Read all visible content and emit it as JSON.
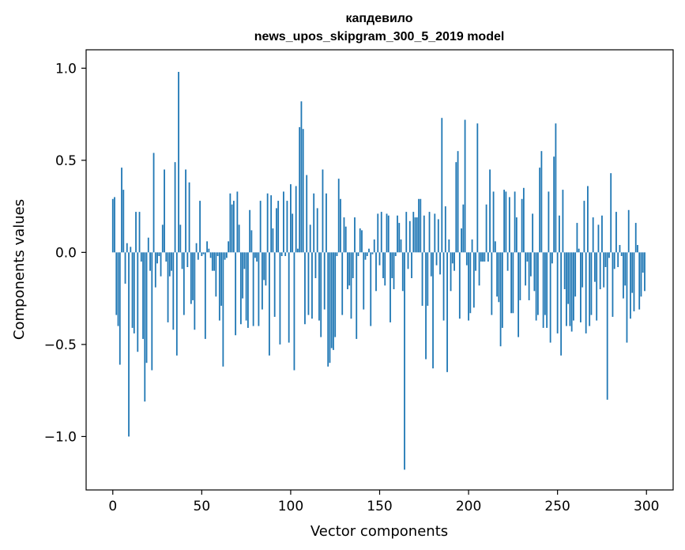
{
  "chart_data": {
    "type": "bar",
    "title_line1": "капдевило",
    "title_line2": "news_upos_skipgram_300_5_2019 model",
    "xlabel": "Vector components",
    "ylabel": "Components values",
    "xlim": [
      -15,
      315
    ],
    "ylim": [
      -1.29,
      1.1
    ],
    "xticks": [
      0,
      50,
      100,
      150,
      200,
      250,
      300
    ],
    "xtick_labels": [
      "0",
      "50",
      "100",
      "150",
      "200",
      "250",
      "300"
    ],
    "yticks": [
      -1.0,
      -0.5,
      0.0,
      0.5,
      1.0
    ],
    "ytick_labels": [
      "−1.0",
      "−0.5",
      "0.0",
      "0.5",
      "1.0"
    ],
    "bar_color": "#1f77b4",
    "values": [
      0.29,
      0.3,
      -0.34,
      -0.4,
      -0.61,
      0.46,
      0.34,
      -0.17,
      0.05,
      -1.0,
      0.03,
      -0.41,
      -0.44,
      0.22,
      -0.54,
      0.22,
      -0.05,
      -0.47,
      -0.81,
      -0.6,
      0.08,
      -0.1,
      -0.64,
      0.54,
      -0.19,
      -0.06,
      -0.02,
      -0.13,
      0.15,
      0.45,
      -0.05,
      -0.38,
      -0.13,
      -0.1,
      -0.42,
      0.49,
      -0.56,
      0.98,
      0.15,
      -0.09,
      -0.34,
      0.45,
      -0.08,
      0.38,
      -0.28,
      -0.26,
      -0.42,
      0.05,
      -0.04,
      0.28,
      -0.02,
      -0.01,
      -0.47,
      0.06,
      0.02,
      -0.03,
      -0.1,
      -0.1,
      -0.24,
      -0.02,
      -0.37,
      -0.29,
      -0.62,
      -0.04,
      -0.03,
      0.06,
      0.32,
      0.26,
      0.28,
      -0.45,
      0.33,
      0.15,
      -0.39,
      -0.25,
      -0.09,
      -0.37,
      -0.41,
      0.23,
      0.12,
      -0.4,
      -0.03,
      -0.05,
      -0.4,
      0.28,
      -0.31,
      -0.15,
      -0.18,
      0.32,
      -0.56,
      0.31,
      0.13,
      -0.35,
      0.24,
      0.28,
      -0.5,
      -0.02,
      0.33,
      -0.02,
      0.28,
      -0.49,
      0.37,
      0.21,
      -0.64,
      0.36,
      0.02,
      0.68,
      0.82,
      0.67,
      -0.39,
      0.42,
      -0.34,
      0.15,
      -0.36,
      0.32,
      -0.14,
      0.24,
      -0.37,
      -0.46,
      0.45,
      -0.31,
      0.32,
      -0.62,
      -0.6,
      -0.52,
      -0.53,
      -0.46,
      -0.02,
      0.4,
      0.29,
      -0.34,
      0.19,
      0.14,
      -0.2,
      -0.18,
      -0.36,
      -0.14,
      0.19,
      -0.47,
      -0.02,
      0.13,
      0.12,
      -0.31,
      -0.04,
      -0.02,
      0.02,
      -0.4,
      -0.01,
      0.07,
      -0.21,
      0.21,
      -0.07,
      0.22,
      -0.14,
      -0.18,
      0.21,
      0.2,
      -0.38,
      -0.14,
      -0.2,
      -0.02,
      0.2,
      0.16,
      0.07,
      -0.21,
      -1.18,
      0.22,
      -0.09,
      0.17,
      -0.14,
      0.22,
      0.19,
      0.19,
      0.29,
      0.29,
      -0.29,
      0.2,
      -0.58,
      -0.29,
      0.22,
      -0.13,
      -0.63,
      0.21,
      -0.07,
      0.18,
      -0.12,
      0.73,
      -0.37,
      0.25,
      -0.65,
      0.07,
      -0.21,
      -0.06,
      -0.1,
      0.49,
      0.55,
      -0.36,
      0.13,
      0.26,
      0.72,
      -0.07,
      -0.37,
      -0.33,
      0.07,
      -0.3,
      -0.1,
      0.7,
      -0.18,
      -0.05,
      -0.05,
      -0.05,
      0.26,
      -0.05,
      0.45,
      -0.34,
      0.33,
      0.06,
      -0.24,
      -0.27,
      -0.51,
      -0.41,
      0.34,
      0.33,
      -0.1,
      0.3,
      -0.33,
      -0.33,
      0.33,
      0.19,
      -0.46,
      -0.26,
      0.29,
      0.35,
      -0.18,
      -0.05,
      -0.26,
      -0.13,
      0.21,
      -0.21,
      -0.37,
      -0.34,
      0.46,
      0.55,
      -0.41,
      -0.34,
      -0.41,
      0.33,
      -0.49,
      -0.06,
      0.52,
      0.7,
      -0.44,
      0.2,
      -0.56,
      0.34,
      -0.2,
      -0.4,
      -0.28,
      -0.4,
      -0.43,
      -0.37,
      -0.24,
      0.16,
      0.02,
      -0.38,
      -0.19,
      0.28,
      -0.44,
      0.36,
      -0.4,
      -0.34,
      0.19,
      -0.16,
      -0.37,
      0.15,
      -0.2,
      0.2,
      -0.19,
      -0.08,
      -0.8,
      -0.03,
      0.43,
      -0.35,
      -0.09,
      0.22,
      -0.08,
      0.04,
      -0.02,
      -0.25,
      -0.18,
      -0.49,
      0.23,
      -0.36,
      -0.22,
      -0.32,
      0.16,
      0.04,
      -0.31,
      -0.24,
      -0.11,
      -0.21
    ]
  }
}
